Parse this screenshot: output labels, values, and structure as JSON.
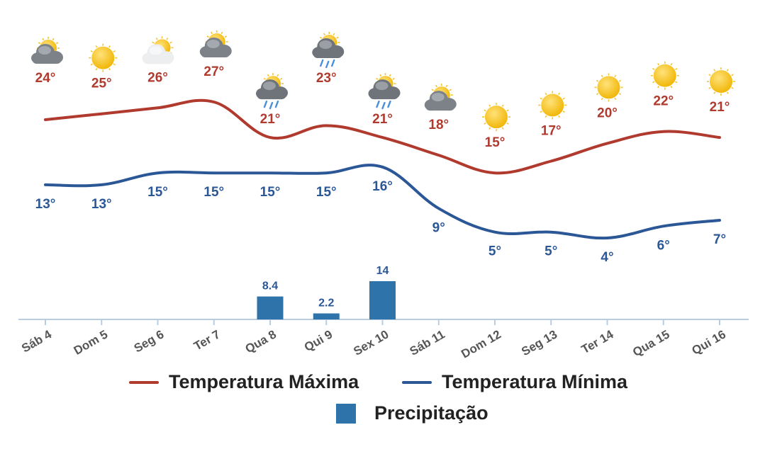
{
  "colors": {
    "max": "#b03a2e",
    "min": "#2b5797",
    "precip": "#2e74aa",
    "axis": "#b8cde0",
    "tick": "#555555",
    "sun": "#f4c430",
    "cloud": "#8a8f96",
    "rain": "#4a90d9"
  },
  "chart_data": {
    "type": "line",
    "categories": [
      "Sáb 4",
      "Dom 5",
      "Seg 6",
      "Ter 7",
      "Qua 8",
      "Qui 9",
      "Sex 10",
      "Sáb 11",
      "Dom 12",
      "Seg 13",
      "Ter 14",
      "Qua 15",
      "Qui 16"
    ],
    "weather_icons": [
      "partly-cloudy-icon",
      "sun-icon",
      "sun-behind-cloud-icon",
      "partly-cloudy-icon",
      "sun-cloud-rain-icon",
      "sun-cloud-rain-icon",
      "sun-cloud-rain-icon",
      "partly-cloudy-icon",
      "sun-icon",
      "sun-icon",
      "sun-icon",
      "sun-icon",
      "sun-icon"
    ],
    "series": [
      {
        "name": "Temperatura Máxima",
        "values": [
          24,
          25,
          26,
          27,
          21,
          23,
          21,
          18,
          15,
          17,
          20,
          22,
          21
        ],
        "labels": [
          "24°",
          "25°",
          "26°",
          "27°",
          "21°",
          "23°",
          "21°",
          "18°",
          "15°",
          "17°",
          "20°",
          "22°",
          "21°"
        ]
      },
      {
        "name": "Temperatura Mínima",
        "values": [
          13,
          13,
          15,
          15,
          15,
          15,
          16,
          9,
          5,
          5,
          4,
          6,
          7
        ],
        "labels": [
          "13°",
          "13°",
          "15°",
          "15°",
          "15°",
          "15°",
          "16°",
          "9°",
          "5°",
          "5°",
          "4°",
          "6°",
          "7°"
        ]
      },
      {
        "name": "Precipitação",
        "type": "bar",
        "values": [
          0,
          0,
          0,
          0,
          8.4,
          2.2,
          14,
          0,
          0,
          0,
          0,
          0,
          0
        ],
        "labels": [
          "",
          "",
          "",
          "",
          "8.4",
          "2.2",
          "14",
          "",
          "",
          "",
          "",
          "",
          ""
        ]
      }
    ],
    "grid": false,
    "legend_position": "bottom"
  },
  "legend": {
    "max_label": "Temperatura Máxima",
    "min_label": "Temperatura Mínima",
    "precip_label": "Precipitação"
  }
}
